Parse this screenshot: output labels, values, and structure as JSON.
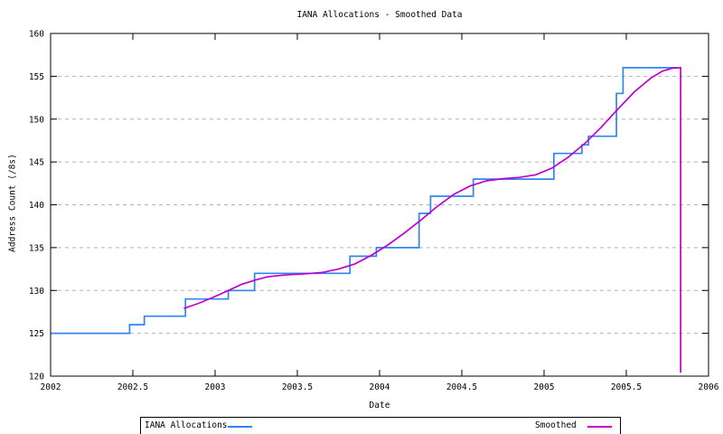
{
  "title": "IANA Allocations - Smoothed Data",
  "axes": {
    "x_label": "Date",
    "y_label": "Address Count (/8s)",
    "x_ticks": [
      "2002",
      "2002.5",
      "2003",
      "2003.5",
      "2004",
      "2004.5",
      "2005",
      "2005.5",
      "2006"
    ],
    "y_ticks": [
      "120",
      "125",
      "130",
      "135",
      "140",
      "145",
      "150",
      "155",
      "160"
    ]
  },
  "legend": {
    "items": [
      {
        "label": "IANA Allocations"
      },
      {
        "label": "Smoothed"
      }
    ]
  },
  "colors": {
    "allocations_line": "#2f86f0",
    "smoothed_line": "#bf00d0",
    "grid": "#b3b3b3",
    "border": "#000000",
    "text": "#000000",
    "background": "#ffffff"
  },
  "chart_data": {
    "type": "line",
    "title": "IANA Allocations - Smoothed Data",
    "xlabel": "Date",
    "ylabel": "Address Count (/8s)",
    "xlim": [
      2002,
      2006
    ],
    "ylim": [
      120,
      160
    ],
    "x_tick_interval": 0.5,
    "y_tick_interval": 5,
    "grid": "horizontal dashed gridlines at each y tick (125-155)",
    "legend_position": "bottom outside, boxed",
    "series": [
      {
        "name": "IANA Allocations",
        "style": "steps",
        "color": "#2f86f0",
        "points": [
          [
            2002.0,
            125
          ],
          [
            2002.48,
            126
          ],
          [
            2002.57,
            127
          ],
          [
            2002.82,
            129
          ],
          [
            2003.08,
            130
          ],
          [
            2003.24,
            132
          ],
          [
            2003.82,
            134
          ],
          [
            2003.98,
            135
          ],
          [
            2004.24,
            139
          ],
          [
            2004.31,
            141
          ],
          [
            2004.57,
            143
          ],
          [
            2005.06,
            146
          ],
          [
            2005.23,
            147
          ],
          [
            2005.27,
            148
          ],
          [
            2005.44,
            153
          ],
          [
            2005.48,
            156
          ],
          [
            2005.81,
            156
          ]
        ]
      },
      {
        "name": "Smoothed",
        "style": "smooth",
        "color": "#bf00d0",
        "points": [
          [
            2002.81,
            127.9
          ],
          [
            2002.9,
            128.5
          ],
          [
            2003.0,
            129.3
          ],
          [
            2003.08,
            130.0
          ],
          [
            2003.16,
            130.7
          ],
          [
            2003.24,
            131.2
          ],
          [
            2003.32,
            131.6
          ],
          [
            2003.42,
            131.8
          ],
          [
            2003.55,
            131.95
          ],
          [
            2003.65,
            132.1
          ],
          [
            2003.75,
            132.5
          ],
          [
            2003.85,
            133.1
          ],
          [
            2003.95,
            134.1
          ],
          [
            2004.05,
            135.3
          ],
          [
            2004.15,
            136.7
          ],
          [
            2004.25,
            138.2
          ],
          [
            2004.35,
            139.8
          ],
          [
            2004.45,
            141.2
          ],
          [
            2004.55,
            142.2
          ],
          [
            2004.65,
            142.8
          ],
          [
            2004.75,
            143.05
          ],
          [
            2004.85,
            143.2
          ],
          [
            2004.95,
            143.5
          ],
          [
            2005.05,
            144.3
          ],
          [
            2005.15,
            145.6
          ],
          [
            2005.25,
            147.2
          ],
          [
            2005.35,
            149.1
          ],
          [
            2005.45,
            151.2
          ],
          [
            2005.55,
            153.2
          ],
          [
            2005.65,
            154.8
          ],
          [
            2005.72,
            155.6
          ],
          [
            2005.78,
            155.95
          ],
          [
            2005.83,
            156.0
          ],
          [
            2005.83,
            120.4
          ]
        ]
      }
    ]
  }
}
